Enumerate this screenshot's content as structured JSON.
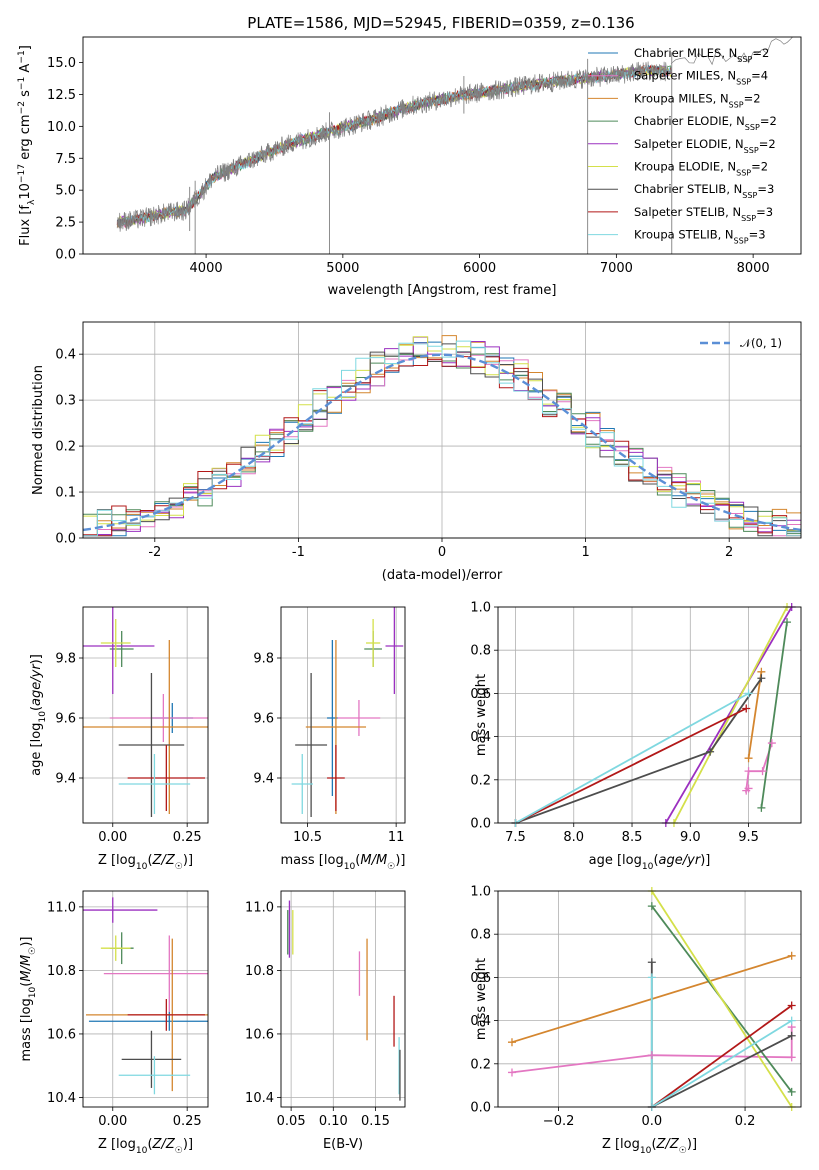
{
  "chart_data": [
    {
      "type": "line",
      "id": "spectrum",
      "title": "PLATE=1586, MJD=52945, FIBERID=0359, z=0.136",
      "xlabel": "wavelength [Angstrom, rest frame]",
      "ylabel": "Flux [f_λ 10^-17 erg cm^-2 s^-1 A^-1]",
      "ylabel_parts": [
        "Flux [f",
        "λ",
        "10",
        "−17",
        " erg cm",
        "−2",
        " s",
        "−1",
        " A",
        "−1",
        "]"
      ],
      "xlim": [
        3100,
        8350
      ],
      "ylim": [
        0,
        17
      ],
      "xticks": [
        4000,
        5000,
        6000,
        7000,
        8000
      ],
      "yticks": [
        0.0,
        2.5,
        5.0,
        7.5,
        10.0,
        12.5,
        15.0
      ],
      "grid": false,
      "legend_position": "top-right",
      "observed_color": "#808080",
      "continuum_points": [
        [
          3350,
          2.5
        ],
        [
          3500,
          2.7
        ],
        [
          3700,
          3.2
        ],
        [
          3850,
          3.4
        ],
        [
          3950,
          4.6
        ],
        [
          4050,
          6.0
        ],
        [
          4300,
          7.2
        ],
        [
          4600,
          8.6
        ],
        [
          4900,
          9.6
        ],
        [
          5200,
          10.5
        ],
        [
          5500,
          11.6
        ],
        [
          5800,
          12.3
        ],
        [
          6100,
          12.8
        ],
        [
          6400,
          13.3
        ],
        [
          6700,
          13.7
        ],
        [
          7000,
          14.0
        ],
        [
          7200,
          14.4
        ],
        [
          7400,
          14.3
        ]
      ],
      "observed_extension": [
        [
          7400,
          14.5
        ],
        [
          7600,
          15.2
        ],
        [
          7800,
          15.6
        ],
        [
          8000,
          15.4
        ],
        [
          8200,
          16.5
        ],
        [
          8350,
          17.0
        ]
      ],
      "spikes": [
        [
          4902,
          0.0
        ],
        [
          5885,
          11.0
        ],
        [
          3880,
          1.8
        ],
        [
          3920,
          0.0
        ],
        [
          6790,
          0.0
        ],
        [
          7405,
          0.0
        ]
      ],
      "series": [
        {
          "name": "Chabrier MILES, N_SSP=2",
          "label_main": "Chabrier MILES, N",
          "label_sub": "SSP",
          "label_tail": "=2",
          "color": "#1f77b4"
        },
        {
          "name": "Salpeter MILES, N_SSP=4",
          "label_main": "Salpeter MILES, N",
          "label_sub": "SSP",
          "label_tail": "=4",
          "color": "#e377c2"
        },
        {
          "name": "Kroupa MILES, N_SSP=2",
          "label_main": "Kroupa MILES, N",
          "label_sub": "SSP",
          "label_tail": "=2",
          "color": "#d4862f"
        },
        {
          "name": "Chabrier ELODIE, N_SSP=2",
          "label_main": "Chabrier ELODIE, N",
          "label_sub": "SSP",
          "label_tail": "=2",
          "color": "#4e8a5a"
        },
        {
          "name": "Salpeter ELODIE, N_SSP=2",
          "label_main": "Salpeter ELODIE, N",
          "label_sub": "SSP",
          "label_tail": "=2",
          "color": "#9b30c0"
        },
        {
          "name": "Kroupa ELODIE, N_SSP=2",
          "label_main": "Kroupa ELODIE, N",
          "label_sub": "SSP",
          "label_tail": "=2",
          "color": "#d4e04a"
        },
        {
          "name": "Chabrier STELIB, N_SSP=3",
          "label_main": "Chabrier STELIB, N",
          "label_sub": "SSP",
          "label_tail": "=3",
          "color": "#4d4d4d"
        },
        {
          "name": "Salpeter STELIB, N_SSP=3",
          "label_main": "Salpeter STELIB, N",
          "label_sub": "SSP",
          "label_tail": "=3",
          "color": "#b21818"
        },
        {
          "name": "Kroupa STELIB, N_SSP=3",
          "label_main": "Kroupa STELIB, N",
          "label_sub": "SSP",
          "label_tail": "=3",
          "color": "#7fd8e0"
        }
      ]
    },
    {
      "type": "line",
      "id": "residuals",
      "xlabel": "(data-model)/error",
      "ylabel": "Normed distribution",
      "xlim": [
        -2.5,
        2.5
      ],
      "ylim": [
        0,
        0.47
      ],
      "xticks": [
        -2,
        -1,
        0,
        1,
        2
      ],
      "yticks": [
        0.0,
        0.1,
        0.2,
        0.3,
        0.4
      ],
      "grid": true,
      "legend_position": "top-right",
      "reference_curve": {
        "name": "N(0,1)",
        "label": "𝒩(0, 1)",
        "mu": 0,
        "sigma": 1,
        "color": "#5b8fd6"
      },
      "bin_width": 0.1
    },
    {
      "type": "scatter",
      "id": "age-vs-Z",
      "xlabel": "Z [log10(Z/Z☉)]",
      "ylabel": "age [log10(age/yr)]",
      "xlim": [
        -0.1,
        0.32
      ],
      "ylim": [
        9.25,
        9.97
      ],
      "xticks": [
        0.0,
        0.25
      ],
      "xtick_labels": [
        "0.00",
        "0.25"
      ],
      "yticks": [
        9.4,
        9.6,
        9.8
      ],
      "grid": true,
      "points": [
        {
          "x": 0.2,
          "y": 9.6,
          "xerr": 0.07,
          "yerr": 0.05,
          "color": "#1f77b4"
        },
        {
          "x": 0.17,
          "y": 9.6,
          "xerr": 0.18,
          "yerr": 0.08,
          "color": "#e377c2"
        },
        {
          "x": 0.19,
          "y": 9.57,
          "xerr": 0.3,
          "yerr": 0.29,
          "color": "#d4862f"
        },
        {
          "x": 0.03,
          "y": 9.83,
          "xerr": 0.04,
          "yerr": 0.06,
          "color": "#4e8a5a"
        },
        {
          "x": 0.0,
          "y": 9.84,
          "xerr": 0.14,
          "yerr": 0.16,
          "color": "#9b30c0"
        },
        {
          "x": 0.01,
          "y": 9.85,
          "xerr": 0.05,
          "yerr": 0.08,
          "color": "#d4e04a"
        },
        {
          "x": 0.13,
          "y": 9.51,
          "xerr": 0.11,
          "yerr": 0.24,
          "color": "#4d4d4d"
        },
        {
          "x": 0.18,
          "y": 9.4,
          "xerr": 0.13,
          "yerr": 0.11,
          "color": "#b21818"
        },
        {
          "x": 0.14,
          "y": 9.38,
          "xerr": 0.12,
          "yerr": 0.1,
          "color": "#7fd8e0"
        }
      ]
    },
    {
      "type": "scatter",
      "id": "age-vs-mass",
      "xlabel": "mass [log10(M/M☉)]",
      "ylabel": "",
      "xlim": [
        10.35,
        11.05
      ],
      "ylim": [
        9.25,
        9.97
      ],
      "xticks": [
        10.5,
        11.0
      ],
      "yticks": [
        9.4,
        9.6,
        9.8
      ],
      "grid": true,
      "points": [
        {
          "x": 10.64,
          "y": 9.6,
          "xerr": 0.03,
          "yerr": 0.26,
          "color": "#1f77b4"
        },
        {
          "x": 10.79,
          "y": 9.6,
          "xerr": 0.12,
          "yerr": 0.06,
          "color": "#e377c2"
        },
        {
          "x": 10.66,
          "y": 9.57,
          "xerr": 0.17,
          "yerr": 0.29,
          "color": "#d4862f"
        },
        {
          "x": 10.87,
          "y": 9.83,
          "xerr": 0.05,
          "yerr": 0.06,
          "color": "#4e8a5a"
        },
        {
          "x": 10.99,
          "y": 9.84,
          "xerr": 0.05,
          "yerr": 0.16,
          "color": "#9b30c0"
        },
        {
          "x": 10.87,
          "y": 9.85,
          "xerr": 0.04,
          "yerr": 0.08,
          "color": "#d4e04a"
        },
        {
          "x": 10.52,
          "y": 9.51,
          "xerr": 0.09,
          "yerr": 0.24,
          "color": "#4d4d4d"
        },
        {
          "x": 10.66,
          "y": 9.4,
          "xerr": 0.05,
          "yerr": 0.11,
          "color": "#b21818"
        },
        {
          "x": 10.47,
          "y": 9.38,
          "xerr": 0.06,
          "yerr": 0.1,
          "color": "#7fd8e0"
        }
      ]
    },
    {
      "type": "line",
      "id": "mass-weight-vs-age",
      "xlabel": "age [log10(age/yr)]",
      "ylabel": "mass weight",
      "xlim": [
        7.35,
        9.95
      ],
      "ylim": [
        0,
        1.0
      ],
      "xticks": [
        7.5,
        8.0,
        8.5,
        9.0,
        9.5
      ],
      "xtick_labels": [
        "7.5",
        "8.0",
        "8.5",
        "9.0",
        "9.5"
      ],
      "yticks": [
        0.0,
        0.2,
        0.4,
        0.6,
        0.8,
        1.0
      ],
      "grid": true,
      "series": [
        {
          "color": "#e377c2",
          "points": [
            [
              9.5,
              0.16
            ],
            [
              9.48,
              0.15
            ],
            [
              9.5,
              0.24
            ],
            [
              9.62,
              0.24
            ],
            [
              9.7,
              0.37
            ]
          ]
        },
        {
          "color": "#d4862f",
          "points": [
            [
              9.5,
              0.3
            ],
            [
              9.61,
              0.7
            ]
          ]
        },
        {
          "color": "#4e8a5a",
          "points": [
            [
              9.61,
              0.07
            ],
            [
              9.83,
              0.93
            ]
          ]
        },
        {
          "color": "#9b30c0",
          "points": [
            [
              8.79,
              0.0
            ],
            [
              9.87,
              1.0
            ]
          ]
        },
        {
          "color": "#d4e04a",
          "points": [
            [
              8.86,
              0.0
            ],
            [
              9.83,
              1.0
            ]
          ]
        },
        {
          "color": "#4d4d4d",
          "points": [
            [
              7.5,
              0.0
            ],
            [
              9.17,
              0.33
            ],
            [
              9.61,
              0.67
            ]
          ]
        },
        {
          "color": "#b21818",
          "points": [
            [
              7.5,
              0.0
            ],
            [
              9.48,
              0.53
            ]
          ]
        },
        {
          "color": "#7fd8e0",
          "points": [
            [
              7.5,
              0.0
            ],
            [
              9.5,
              0.6
            ]
          ]
        }
      ]
    },
    {
      "type": "scatter",
      "id": "mass-vs-Z",
      "xlabel": "Z [log10(Z/Z☉)]",
      "ylabel": "mass [log10(M/M☉)]",
      "xlim": [
        -0.1,
        0.32
      ],
      "ylim": [
        10.37,
        11.05
      ],
      "xticks": [
        0.0,
        0.25
      ],
      "xtick_labels": [
        "0.00",
        "0.25"
      ],
      "yticks": [
        10.4,
        10.6,
        10.8,
        11.0
      ],
      "grid": true,
      "points": [
        {
          "x": 0.19,
          "y": 10.64,
          "xerr": 0.27,
          "yerr": 0.03,
          "color": "#1f77b4"
        },
        {
          "x": 0.19,
          "y": 10.79,
          "xerr": 0.22,
          "yerr": 0.12,
          "color": "#e377c2"
        },
        {
          "x": 0.2,
          "y": 10.66,
          "xerr": 0.29,
          "yerr": 0.24,
          "color": "#d4862f"
        },
        {
          "x": 0.03,
          "y": 10.87,
          "xerr": 0.04,
          "yerr": 0.05,
          "color": "#4e8a5a"
        },
        {
          "x": 0.0,
          "y": 10.99,
          "xerr": 0.15,
          "yerr": 0.04,
          "color": "#9b30c0"
        },
        {
          "x": 0.01,
          "y": 10.87,
          "xerr": 0.05,
          "yerr": 0.04,
          "color": "#d4e04a"
        },
        {
          "x": 0.13,
          "y": 10.52,
          "xerr": 0.1,
          "yerr": 0.09,
          "color": "#4d4d4d"
        },
        {
          "x": 0.18,
          "y": 10.66,
          "xerr": 0.13,
          "yerr": 0.05,
          "color": "#b21818"
        },
        {
          "x": 0.14,
          "y": 10.47,
          "xerr": 0.12,
          "yerr": 0.06,
          "color": "#7fd8e0"
        }
      ]
    },
    {
      "type": "scatter",
      "id": "mass-vs-EBV",
      "xlabel": "E(B-V)",
      "ylabel": "",
      "xlim": [
        0.038,
        0.185
      ],
      "ylim": [
        10.37,
        11.05
      ],
      "xticks": [
        0.05,
        0.1,
        0.15
      ],
      "xtick_labels": [
        "0.05",
        "0.10",
        "0.15"
      ],
      "yticks": [
        10.4,
        10.6,
        10.8,
        11.0
      ],
      "grid": true,
      "points": [
        {
          "x": 0.178,
          "y": 10.5,
          "xerr": 0,
          "yerr": 0.09,
          "color": "#7fd8e0"
        },
        {
          "x": 0.131,
          "y": 10.79,
          "xerr": 0,
          "yerr": 0.07,
          "color": "#e377c2"
        },
        {
          "x": 0.14,
          "y": 10.74,
          "xerr": 0,
          "yerr": 0.16,
          "color": "#d4862f"
        },
        {
          "x": 0.046,
          "y": 10.92,
          "xerr": 0,
          "yerr": 0.07,
          "color": "#4e8a5a"
        },
        {
          "x": 0.048,
          "y": 10.93,
          "xerr": 0,
          "yerr": 0.09,
          "color": "#9b30c0"
        },
        {
          "x": 0.052,
          "y": 10.92,
          "xerr": 0,
          "yerr": 0.07,
          "color": "#d4e04a"
        },
        {
          "x": 0.179,
          "y": 10.47,
          "xerr": 0,
          "yerr": 0.08,
          "color": "#4d4d4d"
        },
        {
          "x": 0.172,
          "y": 10.64,
          "xerr": 0,
          "yerr": 0.08,
          "color": "#b21818"
        }
      ]
    },
    {
      "type": "line",
      "id": "mass-weight-vs-Z",
      "xlabel": "Z [log10(Z/Z☉)]",
      "ylabel": "mass weight",
      "xlim": [
        -0.33,
        0.32
      ],
      "ylim": [
        0,
        1.0
      ],
      "xticks": [
        -0.2,
        0.0,
        0.2
      ],
      "xtick_labels": [
        "−0.2",
        "0.0",
        "0.2"
      ],
      "yticks": [
        0.0,
        0.2,
        0.4,
        0.6,
        0.8,
        1.0
      ],
      "grid": true,
      "series": [
        {
          "color": "#e377c2",
          "points": [
            [
              -0.3,
              0.16
            ],
            [
              0.0,
              0.24
            ],
            [
              0.3,
              0.23
            ],
            [
              0.3,
              0.37
            ]
          ]
        },
        {
          "color": "#d4862f",
          "points": [
            [
              -0.3,
              0.3
            ],
            [
              0.3,
              0.7
            ]
          ]
        },
        {
          "color": "#4e8a5a",
          "points": [
            [
              0.0,
              0.93
            ],
            [
              0.3,
              0.07
            ]
          ]
        },
        {
          "color": "#d4e04a",
          "points": [
            [
              0.0,
              1.0
            ],
            [
              0.3,
              0.0
            ]
          ]
        },
        {
          "color": "#4d4d4d",
          "points": [
            [
              0.0,
              0.67
            ],
            [
              0.0,
              0.0
            ],
            [
              0.3,
              0.33
            ]
          ]
        },
        {
          "color": "#b21818",
          "points": [
            [
              0.0,
              0.0
            ],
            [
              0.3,
              0.47
            ]
          ]
        },
        {
          "color": "#7fd8e0",
          "points": [
            [
              0.0,
              0.6
            ],
            [
              0.0,
              0.0
            ],
            [
              0.3,
              0.4
            ]
          ]
        }
      ]
    }
  ]
}
